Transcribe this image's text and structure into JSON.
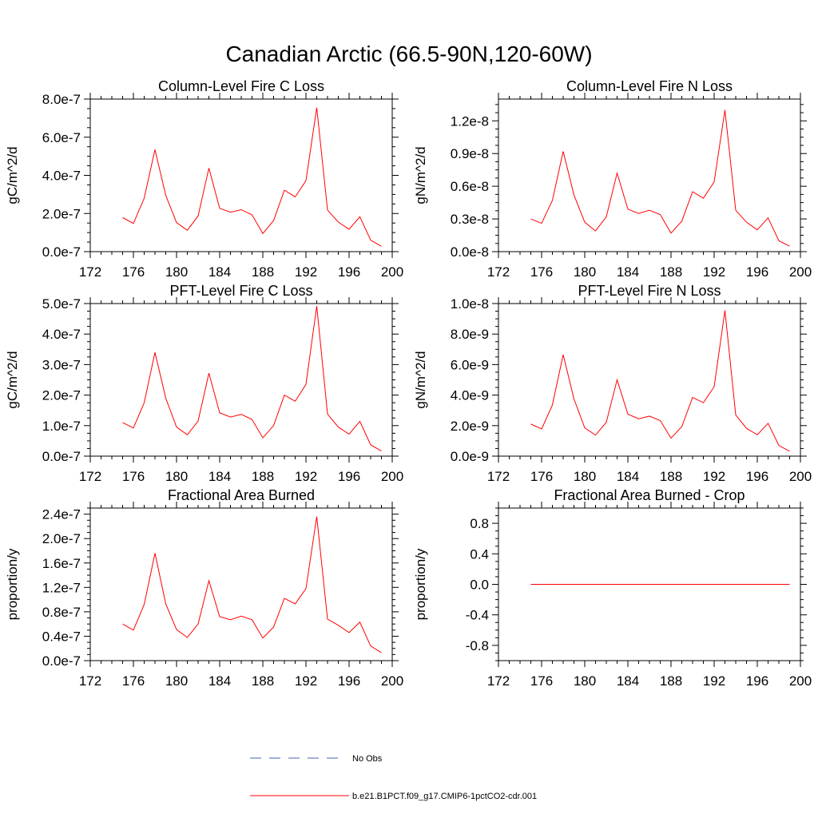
{
  "title": "Canadian Arctic (66.5-90N,120-60W)",
  "colors": {
    "model_series": "#ff0000",
    "obs_series": "#4a5fb0",
    "axis": "#000000"
  },
  "legend": {
    "items": [
      {
        "label": "No Obs",
        "style": "dashed",
        "color": "#4a5fb0"
      },
      {
        "label": "b.e21.B1PCT.f09_g17.CMIP6-1pctCO2-cdr.001",
        "style": "solid",
        "color": "#ff0000"
      }
    ]
  },
  "chart_data": [
    {
      "type": "line",
      "title": "Column-Level Fire C Loss",
      "ylabel": "gC/m^2/d",
      "xlim": [
        172,
        200
      ],
      "x_ticks": [
        "172",
        "176",
        "180",
        "184",
        "188",
        "192",
        "196",
        "200"
      ],
      "ylim": [
        0,
        8e-07
      ],
      "y_ticks": [
        0,
        2e-07,
        4e-07,
        6e-07,
        8e-07
      ],
      "y_tick_labels": [
        "0.0e-7",
        "2.0e-7",
        "4.0e-7",
        "6.0e-7",
        "8.0e-7"
      ],
      "x": [
        175,
        176,
        177,
        178,
        179,
        180,
        181,
        182,
        183,
        184,
        185,
        186,
        187,
        188,
        189,
        190,
        191,
        192,
        193,
        194,
        195,
        196,
        197,
        198,
        199
      ],
      "series": [
        {
          "values": [
            1.78e-07,
            1.48e-07,
            2.8e-07,
            5.35e-07,
            2.95e-07,
            1.52e-07,
            1.12e-07,
            1.87e-07,
            4.38e-07,
            2.27e-07,
            2.07e-07,
            2.2e-07,
            1.93e-07,
            9.5e-08,
            1.63e-07,
            3.22e-07,
            2.87e-07,
            3.72e-07,
            7.55e-07,
            2.18e-07,
            1.55e-07,
            1.17e-07,
            1.83e-07,
            6e-08,
            2.8e-08
          ]
        }
      ]
    },
    {
      "type": "line",
      "title": "Column-Level Fire N Loss",
      "ylabel": "gN/m^2/d",
      "xlim": [
        172,
        200
      ],
      "x_ticks": [
        "172",
        "176",
        "180",
        "184",
        "188",
        "192",
        "196",
        "200"
      ],
      "ylim": [
        0,
        1.4e-08
      ],
      "y_ticks": [
        0,
        3e-09,
        6e-09,
        9e-09,
        1.2e-08
      ],
      "y_tick_labels": [
        "0.0e-8",
        "0.3e-8",
        "0.6e-8",
        "0.9e-8",
        "1.2e-8"
      ],
      "x": [
        175,
        176,
        177,
        178,
        179,
        180,
        181,
        182,
        183,
        184,
        185,
        186,
        187,
        188,
        189,
        190,
        191,
        192,
        193,
        194,
        195,
        196,
        197,
        198,
        199
      ],
      "series": [
        {
          "values": [
            3e-09,
            2.6e-09,
            4.7e-09,
            9.2e-09,
            5.2e-09,
            2.7e-09,
            1.9e-09,
            3.2e-09,
            7.2e-09,
            3.9e-09,
            3.5e-09,
            3.8e-09,
            3.4e-09,
            1.7e-09,
            2.8e-09,
            5.5e-09,
            4.9e-09,
            6.4e-09,
            1.3e-08,
            3.8e-09,
            2.7e-09,
            2e-09,
            3.1e-09,
            1e-09,
            5e-10
          ]
        }
      ]
    },
    {
      "type": "line",
      "title": "PFT-Level Fire C Loss",
      "ylabel": "gC/m^2/d",
      "xlim": [
        172,
        200
      ],
      "x_ticks": [
        "172",
        "176",
        "180",
        "184",
        "188",
        "192",
        "196",
        "200"
      ],
      "ylim": [
        0,
        5e-07
      ],
      "y_ticks": [
        0,
        1e-07,
        2e-07,
        3e-07,
        4e-07,
        5e-07
      ],
      "y_tick_labels": [
        "0.0e-7",
        "1.0e-7",
        "2.0e-7",
        "3.0e-7",
        "4.0e-7",
        "5.0e-7"
      ],
      "x": [
        175,
        176,
        177,
        178,
        179,
        180,
        181,
        182,
        183,
        184,
        185,
        186,
        187,
        188,
        189,
        190,
        191,
        192,
        193,
        194,
        195,
        196,
        197,
        198,
        199
      ],
      "series": [
        {
          "values": [
            1.1e-07,
            9.2e-08,
            1.75e-07,
            3.4e-07,
            1.9e-07,
            9.5e-08,
            7e-08,
            1.15e-07,
            2.72e-07,
            1.42e-07,
            1.28e-07,
            1.37e-07,
            1.2e-07,
            6e-08,
            1e-07,
            2e-07,
            1.8e-07,
            2.35e-07,
            4.92e-07,
            1.38e-07,
            9.5e-08,
            7.2e-08,
            1.14e-07,
            3.7e-08,
            1.7e-08
          ]
        }
      ]
    },
    {
      "type": "line",
      "title": "PFT-Level Fire N Loss",
      "ylabel": "gN/m^2/d",
      "xlim": [
        172,
        200
      ],
      "x_ticks": [
        "172",
        "176",
        "180",
        "184",
        "188",
        "192",
        "196",
        "200"
      ],
      "ylim": [
        0,
        1e-08
      ],
      "y_ticks": [
        0,
        2e-09,
        4e-09,
        6e-09,
        8e-09,
        1e-08
      ],
      "y_tick_labels": [
        "0.0e-9",
        "2.0e-9",
        "4.0e-9",
        "6.0e-9",
        "8.0e-9",
        "1.0e-8"
      ],
      "x": [
        175,
        176,
        177,
        178,
        179,
        180,
        181,
        182,
        183,
        184,
        185,
        186,
        187,
        188,
        189,
        190,
        191,
        192,
        193,
        194,
        195,
        196,
        197,
        198,
        199
      ],
      "series": [
        {
          "values": [
            2.1e-09,
            1.78e-09,
            3.35e-09,
            6.65e-09,
            3.75e-09,
            1.85e-09,
            1.38e-09,
            2.22e-09,
            5e-09,
            2.75e-09,
            2.45e-09,
            2.62e-09,
            2.33e-09,
            1.18e-09,
            1.93e-09,
            3.85e-09,
            3.5e-09,
            4.55e-09,
            9.55e-09,
            2.7e-09,
            1.82e-09,
            1.4e-09,
            2.15e-09,
            7e-10,
            3.2e-10
          ]
        }
      ]
    },
    {
      "type": "line",
      "title": "Fractional Area Burned",
      "ylabel": "proportion/y",
      "xlim": [
        172,
        200
      ],
      "x_ticks": [
        "172",
        "176",
        "180",
        "184",
        "188",
        "192",
        "196",
        "200"
      ],
      "ylim": [
        0,
        2.5e-07
      ],
      "y_ticks": [
        0,
        4e-08,
        8e-08,
        1.2e-07,
        1.6e-07,
        2e-07,
        2.4e-07
      ],
      "y_tick_labels": [
        "0.0e-7",
        "0.4e-7",
        "0.8e-7",
        "1.2e-7",
        "1.6e-7",
        "2.0e-7",
        "2.4e-7"
      ],
      "x": [
        175,
        176,
        177,
        178,
        179,
        180,
        181,
        182,
        183,
        184,
        185,
        186,
        187,
        188,
        189,
        190,
        191,
        192,
        193,
        194,
        195,
        196,
        197,
        198,
        199
      ],
      "series": [
        {
          "values": [
            6e-08,
            5e-08,
            9.2e-08,
            1.76e-07,
            9.3e-08,
            5.1e-08,
            3.8e-08,
            6e-08,
            1.31e-07,
            7.2e-08,
            6.7e-08,
            7.3e-08,
            6.7e-08,
            3.7e-08,
            5.5e-08,
            1.02e-07,
            9.3e-08,
            1.18e-07,
            2.36e-07,
            6.8e-08,
            5.8e-08,
            4.6e-08,
            6.3e-08,
            2.4e-08,
            1.3e-08
          ]
        }
      ]
    },
    {
      "type": "line",
      "title": "Fractional Area Burned - Crop",
      "ylabel": "proportion/y",
      "xlim": [
        172,
        200
      ],
      "x_ticks": [
        "172",
        "176",
        "180",
        "184",
        "188",
        "192",
        "196",
        "200"
      ],
      "ylim": [
        -1.0,
        1.0
      ],
      "y_ticks": [
        -0.8,
        -0.4,
        0,
        0.4,
        0.8
      ],
      "y_tick_labels": [
        "-0.8",
        "-0.4",
        "0.0",
        "0.4",
        "0.8"
      ],
      "x": [
        175,
        176,
        177,
        178,
        179,
        180,
        181,
        182,
        183,
        184,
        185,
        186,
        187,
        188,
        189,
        190,
        191,
        192,
        193,
        194,
        195,
        196,
        197,
        198,
        199
      ],
      "series": [
        {
          "values": [
            0,
            0,
            0,
            0,
            0,
            0,
            0,
            0,
            0,
            0,
            0,
            0,
            0,
            0,
            0,
            0,
            0,
            0,
            0,
            0,
            0,
            0,
            0,
            0,
            0
          ]
        }
      ]
    }
  ]
}
